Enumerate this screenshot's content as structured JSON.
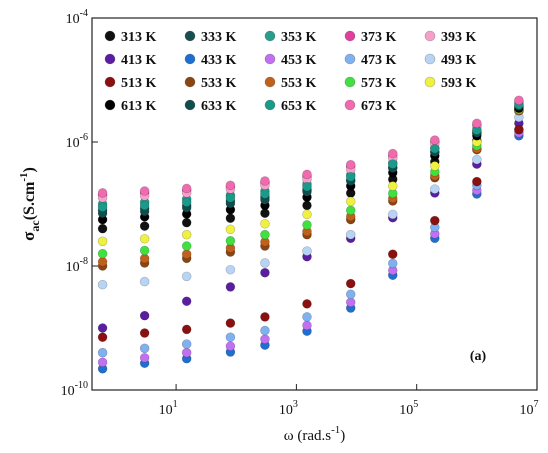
{
  "chart_data": {
    "type": "scatter",
    "y_label": {
      "text": "σ",
      "subscript": "ac",
      "unit": "(S.cm",
      "exponent": "-1",
      "close": ")"
    },
    "x_label": {
      "text": "ω (rad.s",
      "exponent": "-1",
      "close": ")"
    },
    "annotation": "(a)",
    "log_x": true,
    "log_y": true,
    "xlim": [
      0.4,
      10000000
    ],
    "ylim": [
      1e-10,
      0.0001
    ],
    "xticks": [
      {
        "value": 10,
        "label": "10",
        "exponent": "1"
      },
      {
        "value": 1000,
        "label": "10",
        "exponent": "3"
      },
      {
        "value": 100000,
        "label": "10",
        "exponent": "5"
      },
      {
        "value": 10000000,
        "label": "10",
        "exponent": "7"
      }
    ],
    "yticks": [
      {
        "value": 1e-10,
        "label": "10",
        "exponent": "-10"
      },
      {
        "value": 1e-08,
        "label": "10",
        "exponent": "-8"
      },
      {
        "value": 1e-06,
        "label": "10",
        "exponent": "-6"
      },
      {
        "value": 0.0001,
        "label": "10",
        "exponent": "-4"
      }
    ],
    "legend": "upper left",
    "x": [
      0.6,
      3,
      15,
      80,
      300,
      1500,
      8000,
      40000,
      200000,
      1000000,
      5000000
    ],
    "series": [
      {
        "name": "313 K",
        "color": "#111111",
        "values": [
          4e-08,
          4.4e-08,
          5e-08,
          5.9e-08,
          7.1e-08,
          9.5e-08,
          1.5e-07,
          2.5e-07,
          4.8e-07,
          1.05e-06,
          3.2e-06
        ]
      },
      {
        "name": "333 K",
        "color": "#1b4f4f",
        "values": [
          7.9e-08,
          8.5e-08,
          9.5e-08,
          1.12e-07,
          1.29e-07,
          1.7e-07,
          2.45e-07,
          3.9e-07,
          6.9e-07,
          1.38e-06,
          3.5e-06
        ]
      },
      {
        "name": "353 K",
        "color": "#2a9d8f",
        "values": [
          1e-07,
          1.07e-07,
          1.2e-07,
          1.38e-07,
          1.62e-07,
          2.1e-07,
          2.95e-07,
          4.6e-07,
          7.9e-07,
          1.5e-06,
          3.8e-06
        ]
      },
      {
        "name": "373 K",
        "color": "#e0409a",
        "values": [
          1.41e-07,
          1.51e-07,
          1.66e-07,
          1.9e-07,
          2.2e-07,
          2.8e-07,
          4e-07,
          6e-07,
          1.01e-06,
          1.88e-06,
          4.5e-06
        ]
      },
      {
        "name": "393 K",
        "color": "#f5a0c8",
        "values": [
          1.26e-07,
          1.35e-07,
          1.51e-07,
          1.74e-07,
          2e-07,
          2.5e-07,
          3.6e-07,
          5.5e-07,
          9.3e-07,
          1.74e-06,
          4.2e-06
        ]
      },
      {
        "name": "413 K",
        "color": "#5a1fa0",
        "values": [
          1e-09,
          1.58e-09,
          2.7e-09,
          4.6e-09,
          7.8e-09,
          1.41e-08,
          2.8e-08,
          6e-08,
          1.51e-07,
          4.4e-07,
          2e-06
        ]
      },
      {
        "name": "433 K",
        "color": "#1f6fd0",
        "values": [
          2.2e-10,
          2.7e-10,
          3.2e-10,
          4.1e-10,
          5.3e-10,
          8.9e-10,
          2.1e-09,
          7.1e-09,
          2.8e-08,
          1.45e-07,
          1.26e-06
        ]
      },
      {
        "name": "453 K",
        "color": "#c070f0",
        "values": [
          2.8e-10,
          3.3e-10,
          4e-10,
          5.1e-10,
          6.6e-10,
          1.1e-09,
          2.6e-09,
          8.5e-09,
          3.3e-08,
          1.66e-07,
          1.41e-06
        ]
      },
      {
        "name": "473 K",
        "color": "#7fb0f0",
        "values": [
          4e-10,
          4.7e-10,
          5.5e-10,
          7.1e-10,
          9.1e-10,
          1.51e-09,
          3.5e-09,
          1.1e-08,
          4.2e-08,
          2e-07,
          1.58e-06
        ]
      },
      {
        "name": "493 K",
        "color": "#b8d4f5",
        "values": [
          5e-09,
          5.6e-09,
          6.8e-09,
          8.7e-09,
          1.12e-08,
          1.74e-08,
          3.2e-08,
          6.8e-08,
          1.74e-07,
          5.2e-07,
          2.5e-06
        ]
      },
      {
        "name": "513 K",
        "color": "#8b1010",
        "values": [
          7.1e-10,
          8.3e-10,
          9.5e-10,
          1.2e-09,
          1.51e-09,
          2.45e-09,
          5.2e-09,
          1.55e-08,
          5.4e-08,
          2.3e-07,
          1.58e-06
        ]
      },
      {
        "name": "533 K",
        "color": "#8b4513",
        "values": [
          1e-08,
          1.12e-08,
          1.33e-08,
          1.68e-08,
          2.1e-08,
          3.2e-08,
          5.6e-08,
          1.12e-07,
          2.65e-07,
          7.5e-07,
          3.2e-06
        ]
      },
      {
        "name": "553 K",
        "color": "#c0601a",
        "values": [
          1.17e-08,
          1.32e-08,
          1.55e-08,
          1.95e-08,
          2.45e-08,
          3.6e-08,
          6.3e-08,
          1.23e-07,
          2.85e-07,
          7.8e-07,
          3.2e-06
        ]
      },
      {
        "name": "573 K",
        "color": "#40e040",
        "values": [
          1.58e-08,
          1.78e-08,
          2.1e-08,
          2.55e-08,
          3.2e-08,
          4.6e-08,
          7.9e-08,
          1.48e-07,
          3.3e-07,
          8.7e-07,
          3.3e-06
        ]
      },
      {
        "name": "593 K",
        "color": "#f0f040",
        "values": [
          2.5e-08,
          2.75e-08,
          3.2e-08,
          3.9e-08,
          4.8e-08,
          6.8e-08,
          1.1e-07,
          1.95e-07,
          4.1e-07,
          1e-06,
          3.4e-06
        ]
      },
      {
        "name": "613 K",
        "color": "#000000",
        "values": [
          5.6e-08,
          6.2e-08,
          6.9e-08,
          8.1e-08,
          9.5e-08,
          1.29e-07,
          1.95e-07,
          3.2e-07,
          6e-07,
          1.26e-06,
          3.5e-06
        ]
      },
      {
        "name": "633 K",
        "color": "#114d4d",
        "values": [
          7.1e-08,
          7.6e-08,
          8.7e-08,
          1.02e-07,
          1.17e-07,
          1.58e-07,
          2.35e-07,
          3.8e-07,
          6.9e-07,
          1.41e-06,
          3.8e-06
        ]
      },
      {
        "name": "653 K",
        "color": "#1a9a8a",
        "values": [
          8.9e-08,
          9.5e-08,
          1.07e-07,
          1.26e-07,
          1.45e-07,
          1.9e-07,
          2.75e-07,
          4.4e-07,
          7.8e-07,
          1.55e-06,
          4e-06
        ]
      },
      {
        "name": "673 K",
        "color": "#f06ab0",
        "values": [
          1.51e-07,
          1.62e-07,
          1.78e-07,
          2e-07,
          2.35e-07,
          3e-07,
          4.3e-07,
          6.5e-07,
          1.07e-06,
          2e-06,
          4.7e-06
        ]
      }
    ]
  }
}
